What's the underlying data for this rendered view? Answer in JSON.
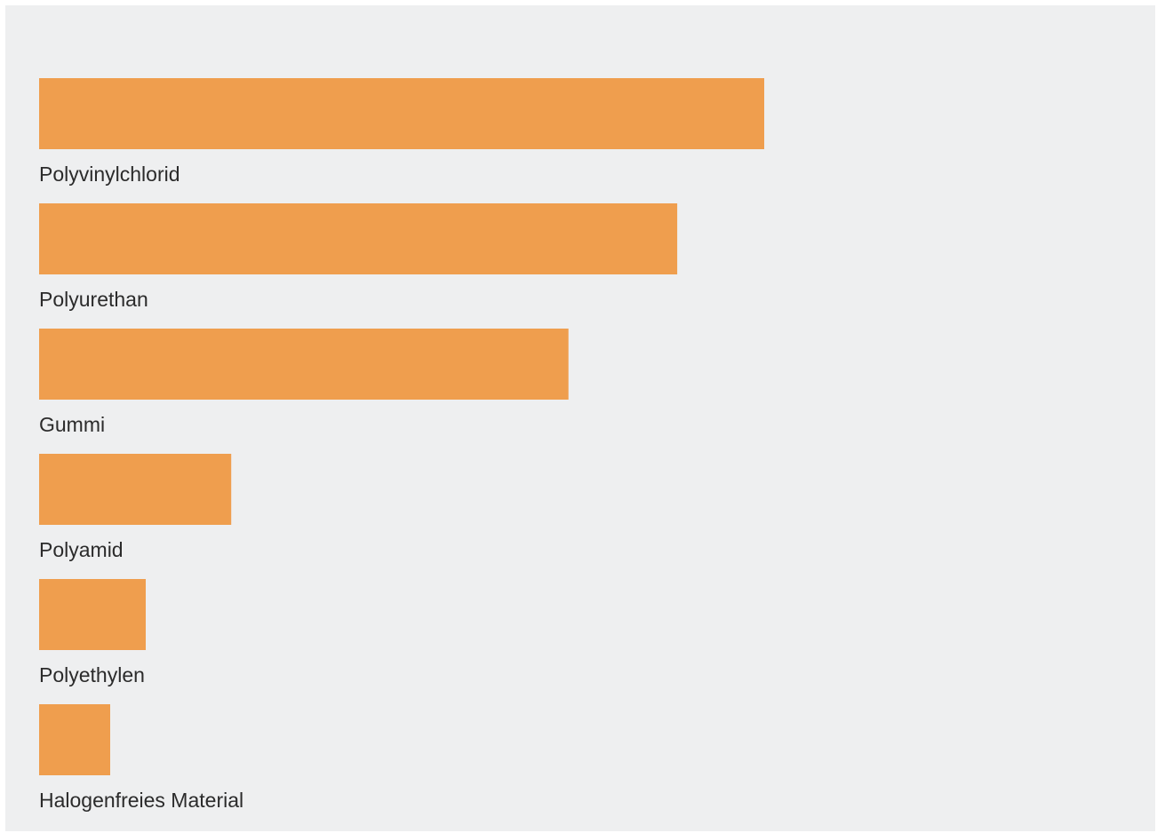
{
  "chart_data": {
    "type": "bar",
    "orientation": "horizontal",
    "title": "",
    "xlabel": "",
    "ylabel": "",
    "categories": [
      "Polyvinylchlorid",
      "Polyurethan",
      "Gummi",
      "Polyamid",
      "Polyethylen",
      "Halogenfreies Material"
    ],
    "values": [
      100,
      88,
      73,
      26.5,
      14.7,
      9.8
    ],
    "xlim": [
      0,
      100
    ],
    "grid": false,
    "legend": "none",
    "colors": {
      "bar": "#ef9e4e",
      "background": "#eeeff0",
      "label": "#2b2b2b"
    }
  }
}
